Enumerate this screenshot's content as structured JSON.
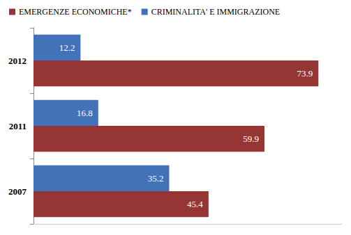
{
  "chart_data": {
    "type": "bar",
    "orientation": "horizontal",
    "categories": [
      "2007",
      "2011",
      "2012"
    ],
    "series": [
      {
        "name": "EMERGENZE ECONOMICHE*",
        "color": "#963634",
        "values": [
          45.4,
          59.9,
          73.9
        ]
      },
      {
        "name": "CRIMINALITA' E IMMIGRAZIONE",
        "color": "#4272b8",
        "values": [
          35.2,
          16.8,
          12.2
        ]
      }
    ],
    "xlim": [
      0,
      80
    ],
    "grid": false,
    "legend": "top",
    "data_labels": true,
    "tick_labels": "y"
  }
}
